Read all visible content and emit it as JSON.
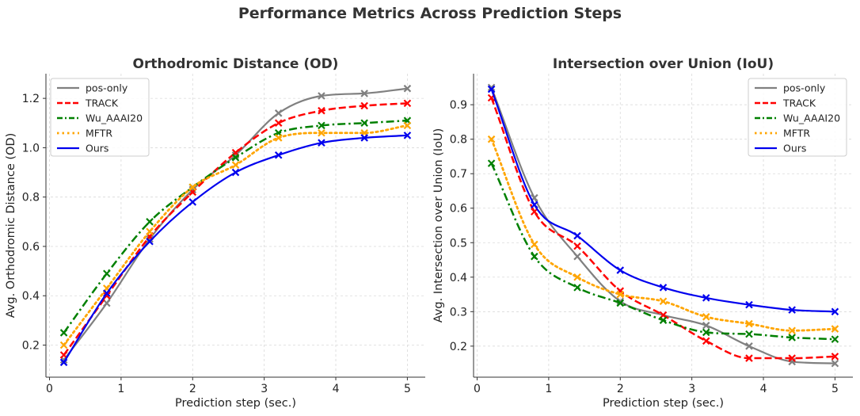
{
  "figure": {
    "title": "Performance Metrics Across Prediction Steps"
  },
  "chart_data": [
    {
      "type": "line",
      "title": "Orthodromic Distance (OD)",
      "xlabel": "Prediction step (sec.)",
      "ylabel": "Avg. Orthodromic Distance (OD)",
      "xlim": [
        -0.05,
        5.25
      ],
      "ylim": [
        0.07,
        1.3
      ],
      "xticks": [
        0,
        1,
        2,
        3,
        4,
        5
      ],
      "yticks": [
        0.2,
        0.4,
        0.6,
        0.8,
        1.0,
        1.2
      ],
      "ytick_labels": [
        "0.2",
        "0.4",
        "0.6",
        "0.8",
        "1.0",
        "1.2"
      ],
      "grid": true,
      "legend_position": "top-left",
      "x": [
        0.2,
        0.8,
        1.4,
        2.0,
        2.6,
        3.2,
        3.8,
        4.4,
        5.0
      ],
      "series": [
        {
          "name": "pos-only",
          "color": "#808080",
          "dash": "solid",
          "values": [
            0.14,
            0.37,
            0.63,
            0.83,
            0.97,
            1.14,
            1.21,
            1.22,
            1.24
          ]
        },
        {
          "name": "TRACK",
          "color": "#ff0000",
          "dash": "dashed",
          "values": [
            0.16,
            0.4,
            0.64,
            0.82,
            0.98,
            1.1,
            1.15,
            1.17,
            1.18
          ]
        },
        {
          "name": "Wu_AAAI20",
          "color": "#008000",
          "dash": "dashdot",
          "values": [
            0.25,
            0.49,
            0.7,
            0.84,
            0.96,
            1.06,
            1.09,
            1.1,
            1.11
          ]
        },
        {
          "name": "MFTR",
          "color": "#ffa500",
          "dash": "dotted",
          "values": [
            0.2,
            0.43,
            0.66,
            0.84,
            0.93,
            1.04,
            1.06,
            1.06,
            1.09
          ]
        },
        {
          "name": "Ours",
          "color": "#0000ee",
          "dash": "solid",
          "values": [
            0.13,
            0.41,
            0.62,
            0.78,
            0.9,
            0.97,
            1.02,
            1.04,
            1.05
          ]
        }
      ]
    },
    {
      "type": "line",
      "title": "Intersection over Union (IoU)",
      "xlabel": "Prediction step (sec.)",
      "ylabel": "Avg. Intersection over Union (IoU)",
      "xlim": [
        -0.05,
        5.25
      ],
      "ylim": [
        0.11,
        0.99
      ],
      "xticks": [
        0,
        1,
        2,
        3,
        4,
        5
      ],
      "yticks": [
        0.2,
        0.3,
        0.4,
        0.5,
        0.6,
        0.7,
        0.8,
        0.9
      ],
      "ytick_labels": [
        "0.2",
        "0.3",
        "0.4",
        "0.5",
        "0.6",
        "0.7",
        "0.8",
        "0.9"
      ],
      "grid": true,
      "legend_position": "top-right",
      "x": [
        0.2,
        0.8,
        1.4,
        2.0,
        2.6,
        3.2,
        3.8,
        4.4,
        5.0
      ],
      "series": [
        {
          "name": "pos-only",
          "color": "#808080",
          "dash": "solid",
          "values": [
            0.95,
            0.63,
            0.46,
            0.33,
            0.29,
            0.26,
            0.2,
            0.155,
            0.15
          ]
        },
        {
          "name": "TRACK",
          "color": "#ff0000",
          "dash": "dashed",
          "values": [
            0.92,
            0.59,
            0.49,
            0.36,
            0.29,
            0.215,
            0.165,
            0.165,
            0.17
          ]
        },
        {
          "name": "Wu_AAAI20",
          "color": "#008000",
          "dash": "dashdot",
          "values": [
            0.73,
            0.46,
            0.37,
            0.325,
            0.275,
            0.24,
            0.235,
            0.225,
            0.22
          ]
        },
        {
          "name": "MFTR",
          "color": "#ffa500",
          "dash": "dotted",
          "values": [
            0.8,
            0.495,
            0.4,
            0.35,
            0.33,
            0.285,
            0.265,
            0.245,
            0.25
          ]
        },
        {
          "name": "Ours",
          "color": "#0000ee",
          "dash": "solid",
          "values": [
            0.945,
            0.61,
            0.52,
            0.42,
            0.37,
            0.34,
            0.32,
            0.305,
            0.3
          ]
        }
      ]
    }
  ]
}
